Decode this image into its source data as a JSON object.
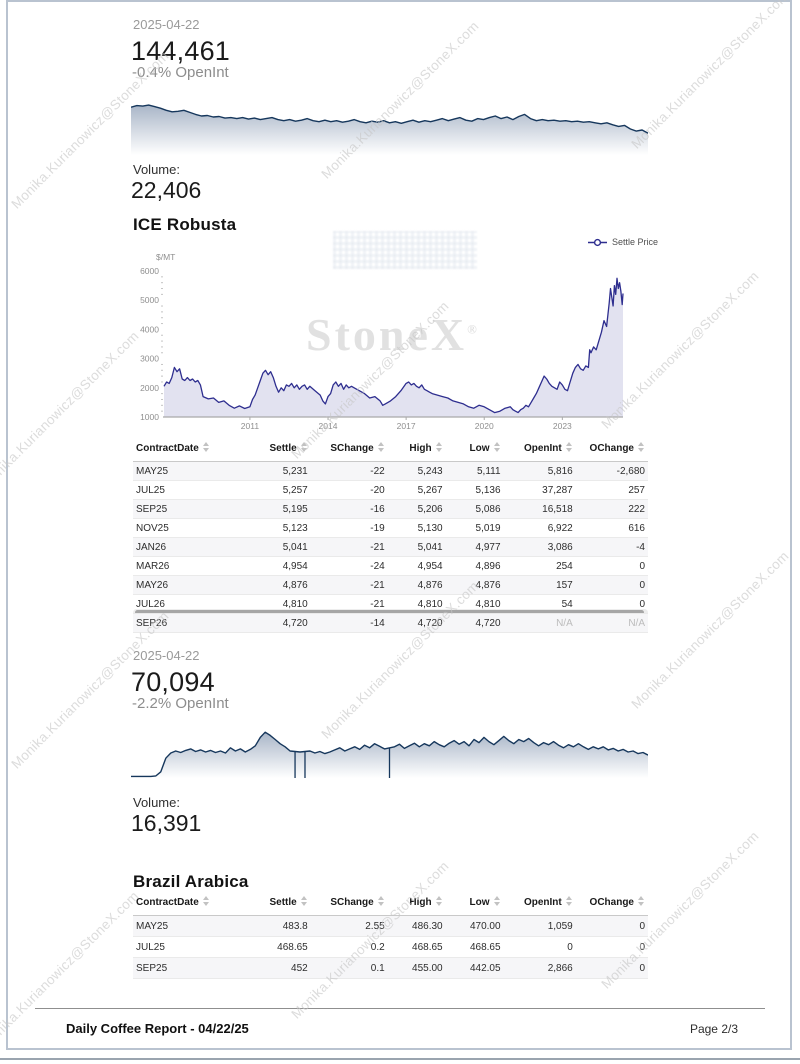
{
  "watermark": {
    "text": "Monika.Kurianowicz@StoneX.com"
  },
  "robusta_open_interest": {
    "date": "2025-04-22",
    "value": "144,461",
    "change": "-0.4% OpenInt",
    "volume_label": "Volume:",
    "volume": "22,406"
  },
  "robusta": {
    "title": "ICE Robusta",
    "unit": "$/MT",
    "legend_label": "Settle Price",
    "chart_watermark": "StoneX",
    "table": {
      "headers": [
        "ContractDate",
        "Settle",
        "SChange",
        "High",
        "Low",
        "OpenInt",
        "OChange"
      ],
      "rows": [
        [
          "MAY25",
          "5,231",
          "-22",
          "5,243",
          "5,111",
          "5,816",
          "-2,680"
        ],
        [
          "JUL25",
          "5,257",
          "-20",
          "5,267",
          "5,136",
          "37,287",
          "257"
        ],
        [
          "SEP25",
          "5,195",
          "-16",
          "5,206",
          "5,086",
          "16,518",
          "222"
        ],
        [
          "NOV25",
          "5,123",
          "-19",
          "5,130",
          "5,019",
          "6,922",
          "616"
        ],
        [
          "JAN26",
          "5,041",
          "-21",
          "5,041",
          "4,977",
          "3,086",
          "-4"
        ],
        [
          "MAR26",
          "4,954",
          "-24",
          "4,954",
          "4,896",
          "254",
          "0"
        ],
        [
          "MAY26",
          "4,876",
          "-21",
          "4,876",
          "4,876",
          "157",
          "0"
        ],
        [
          "JUL26",
          "4,810",
          "-21",
          "4,810",
          "4,810",
          "54",
          "0"
        ],
        [
          "SEP26",
          "4,720",
          "-14",
          "4,720",
          "4,720",
          "N/A",
          "N/A"
        ]
      ]
    }
  },
  "arabica_open_interest": {
    "date": "2025-04-22",
    "value": "70,094",
    "change": "-2.2% OpenInt",
    "volume_label": "Volume:",
    "volume": "16,391"
  },
  "arabica": {
    "title": "Brazil Arabica",
    "table": {
      "headers": [
        "ContractDate",
        "Settle",
        "SChange",
        "High",
        "Low",
        "OpenInt",
        "OChange"
      ],
      "rows": [
        [
          "MAY25",
          "483.8",
          "2.55",
          "486.30",
          "470.00",
          "1,059",
          "0"
        ],
        [
          "JUL25",
          "468.65",
          "0.2",
          "468.65",
          "468.65",
          "0",
          "0"
        ],
        [
          "SEP25",
          "452",
          "0.1",
          "455.00",
          "442.05",
          "2,866",
          "0"
        ]
      ]
    }
  },
  "footer": {
    "title": "Daily Coffee Report - 04/22/25",
    "page": "Page 2/3"
  },
  "colors": {
    "spark_line": "#16375c",
    "main_line": "#2e2e8f",
    "main_fill": "#e2e2f0",
    "border": "#b9c3d0"
  },
  "chart_data": [
    {
      "type": "area",
      "name": "robusta-open-interest-sparkline",
      "title": "",
      "xlabel": "",
      "ylabel": "",
      "note": "unlabeled open-interest history sparkline, relative scale 0-100",
      "values": [
        92,
        95,
        94,
        96,
        93,
        90,
        86,
        83,
        84,
        86,
        82,
        78,
        75,
        76,
        73,
        74,
        71,
        72,
        70,
        72,
        69,
        71,
        68,
        70,
        72,
        68,
        66,
        68,
        65,
        67,
        70,
        66,
        64,
        67,
        64,
        66,
        63,
        65,
        68,
        64,
        62,
        65,
        63,
        66,
        62,
        64,
        61,
        64,
        67,
        63,
        66,
        64,
        67,
        70,
        66,
        69,
        72,
        67,
        65,
        70,
        68,
        72,
        75,
        70,
        73,
        68,
        74,
        78,
        70,
        66,
        68,
        66,
        67,
        65,
        66,
        64,
        65,
        63,
        64,
        62,
        60,
        62,
        58,
        55,
        57,
        50,
        46,
        48,
        42
      ]
    },
    {
      "type": "line",
      "name": "robusta-settle-price-history",
      "title": "",
      "xlabel": "",
      "ylabel": "$/MT",
      "legend": [
        "Settle Price"
      ],
      "legend_position": "top-right",
      "grid": false,
      "ylim": [
        1000,
        6000
      ],
      "y_ticks": [
        1000,
        2000,
        3000,
        4000,
        5000,
        6000
      ],
      "x_ticks": [
        2011,
        2014,
        2017,
        2020,
        2023
      ],
      "x": [
        2007.7,
        2007.8,
        2007.9,
        2008.0,
        2008.1,
        2008.2,
        2008.3,
        2008.4,
        2008.5,
        2008.6,
        2008.7,
        2008.8,
        2008.9,
        2009.0,
        2009.1,
        2009.2,
        2009.4,
        2009.6,
        2009.8,
        2010.0,
        2010.2,
        2010.4,
        2010.6,
        2010.8,
        2011.0,
        2011.1,
        2011.2,
        2011.3,
        2011.4,
        2011.5,
        2011.6,
        2011.7,
        2011.8,
        2011.9,
        2012.0,
        2012.1,
        2012.2,
        2012.3,
        2012.4,
        2012.5,
        2012.6,
        2012.7,
        2012.8,
        2012.9,
        2013.0,
        2013.1,
        2013.2,
        2013.3,
        2013.5,
        2013.7,
        2013.8,
        2013.9,
        2014.0,
        2014.1,
        2014.2,
        2014.3,
        2014.4,
        2014.5,
        2014.6,
        2014.7,
        2014.8,
        2014.9,
        2015.0,
        2015.2,
        2015.4,
        2015.6,
        2015.8,
        2016.0,
        2016.1,
        2016.2,
        2016.4,
        2016.6,
        2016.8,
        2017.0,
        2017.1,
        2017.2,
        2017.3,
        2017.4,
        2017.5,
        2017.6,
        2017.7,
        2017.8,
        2017.9,
        2018.0,
        2018.2,
        2018.4,
        2018.6,
        2018.8,
        2019.0,
        2019.2,
        2019.4,
        2019.6,
        2019.8,
        2020.0,
        2020.2,
        2020.4,
        2020.6,
        2020.8,
        2021.0,
        2021.1,
        2021.2,
        2021.3,
        2021.4,
        2021.5,
        2021.6,
        2021.7,
        2021.8,
        2021.9,
        2022.0,
        2022.1,
        2022.2,
        2022.3,
        2022.4,
        2022.5,
        2022.6,
        2022.7,
        2022.8,
        2022.9,
        2023.0,
        2023.1,
        2023.2,
        2023.3,
        2023.4,
        2023.5,
        2023.6,
        2023.7,
        2023.8,
        2023.9,
        2024.0,
        2024.05,
        2024.1,
        2024.2,
        2024.3,
        2024.4,
        2024.5,
        2024.6,
        2024.7,
        2024.75,
        2024.8,
        2024.85,
        2024.9,
        2024.95,
        2025.0,
        2025.05,
        2025.1,
        2025.15,
        2025.2,
        2025.25,
        2025.3,
        2025.33
      ],
      "y": [
        2050,
        2200,
        2150,
        2350,
        2700,
        2550,
        2650,
        2300,
        2250,
        2350,
        2250,
        2300,
        2200,
        2250,
        2100,
        1700,
        1620,
        1650,
        1500,
        1550,
        1400,
        1300,
        1380,
        1290,
        1350,
        1600,
        1750,
        2000,
        2250,
        2500,
        2600,
        2450,
        2550,
        2350,
        2050,
        1850,
        2000,
        1900,
        2100,
        2050,
        2150,
        2000,
        2100,
        1950,
        2050,
        2100,
        1950,
        2050,
        1900,
        1750,
        1550,
        1450,
        1700,
        1800,
        2100,
        2200,
        2050,
        2150,
        1950,
        2100,
        2000,
        2050,
        2000,
        1900,
        1800,
        1650,
        1700,
        1550,
        1400,
        1450,
        1550,
        1700,
        1900,
        2150,
        2200,
        2100,
        2150,
        2050,
        2000,
        2100,
        1950,
        1900,
        1850,
        1800,
        1750,
        1700,
        1650,
        1550,
        1500,
        1450,
        1350,
        1300,
        1400,
        1350,
        1250,
        1150,
        1200,
        1300,
        1350,
        1250,
        1200,
        1150,
        1250,
        1300,
        1400,
        1350,
        1500,
        1650,
        1800,
        2000,
        2200,
        2400,
        2300,
        2150,
        2050,
        2000,
        1950,
        2200,
        2100,
        1950,
        1900,
        2200,
        2500,
        2700,
        2800,
        2650,
        2600,
        2750,
        2700,
        3300,
        3200,
        3400,
        3300,
        3600,
        3900,
        4300,
        4100,
        4500,
        4900,
        5400,
        5100,
        4800,
        5500,
        5200,
        5750,
        5400,
        5600,
        5300,
        4850,
        5231
      ]
    },
    {
      "type": "area",
      "name": "arabica-open-interest-sparkline",
      "title": "",
      "xlabel": "",
      "ylabel": "",
      "note": "unlabeled open-interest history sparkline, relative scale 0-100; zeros are downward spike lines",
      "values": [
        3,
        3,
        3,
        3,
        3,
        4,
        12,
        38,
        48,
        52,
        49,
        53,
        56,
        51,
        54,
        50,
        53,
        49,
        52,
        48,
        58,
        52,
        56,
        50,
        55,
        62,
        78,
        88,
        82,
        74,
        66,
        60,
        52,
        0,
        50,
        0,
        52,
        48,
        51,
        47,
        50,
        54,
        58,
        52,
        56,
        60,
        55,
        63,
        58,
        66,
        61,
        56,
        0,
        60,
        65,
        57,
        62,
        67,
        60,
        66,
        62,
        70,
        64,
        60,
        67,
        72,
        65,
        70,
        62,
        74,
        68,
        78,
        70,
        64,
        72,
        80,
        72,
        66,
        74,
        70,
        76,
        68,
        62,
        68,
        64,
        70,
        63,
        58,
        64,
        60,
        66,
        60,
        55,
        60,
        56,
        60,
        54,
        57,
        52,
        55,
        50,
        52,
        47,
        49,
        44
      ]
    }
  ]
}
